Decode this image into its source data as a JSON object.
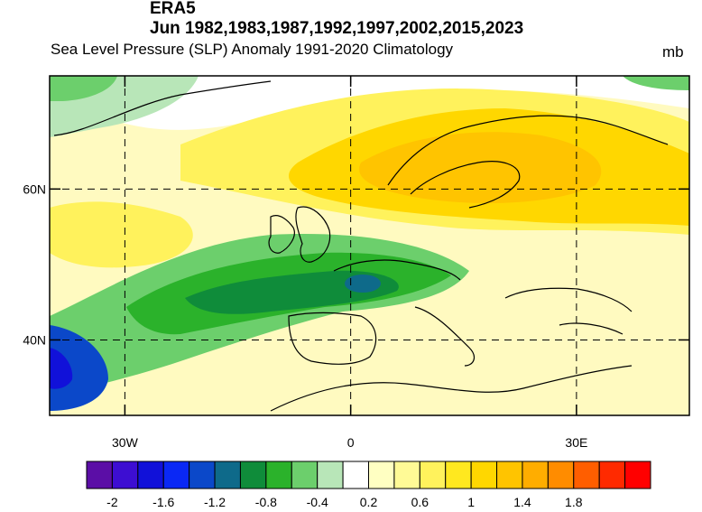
{
  "header": {
    "source": "ERA5",
    "period": "Jun 1982,1983,1987,1992,1997,2002,2015,2023",
    "subtitle": "Sea Level Pressure (SLP) Anomaly  1991-2020 Climatology",
    "units": "mb"
  },
  "map": {
    "lon_range": [
      -40,
      45
    ],
    "lat_range": [
      30,
      75
    ],
    "lat_ticks": [
      {
        "value": 60,
        "label": "60N"
      },
      {
        "value": 40,
        "label": "40N"
      }
    ],
    "lon_ticks": [
      {
        "value": -30,
        "label": "30W"
      },
      {
        "value": 0,
        "label": "0"
      },
      {
        "value": 30,
        "label": "30E"
      }
    ],
    "grid": "dashed"
  },
  "colorbar": {
    "colors": [
      "#5b0ea6",
      "#3d0ed2",
      "#1111d9",
      "#0a28f5",
      "#0b48c9",
      "#0e6a8a",
      "#0f8c3a",
      "#2bb22b",
      "#6ccf6c",
      "#b8e6b8",
      "#ffffff",
      "#ffffc2",
      "#fffa96",
      "#fff25c",
      "#ffe81f",
      "#ffd700",
      "#ffc400",
      "#ffad00",
      "#ff8c00",
      "#ff5e00",
      "#ff2a00",
      "#ff0000"
    ],
    "tick_labels": [
      "-2",
      "-1.6",
      "-1.2",
      "-0.8",
      "-0.4",
      "0.2",
      "0.6",
      "1",
      "1.4",
      "1.8"
    ]
  }
}
